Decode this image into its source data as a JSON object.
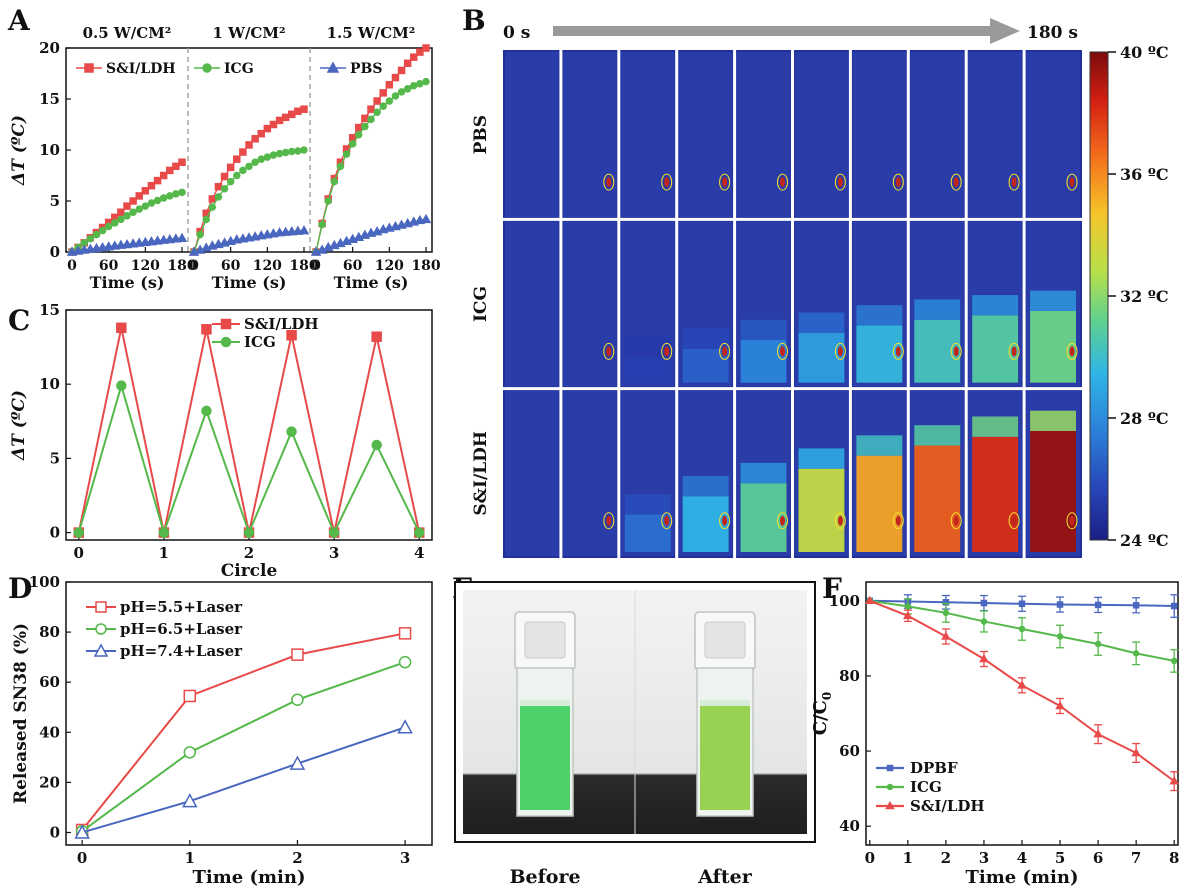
{
  "colors": {
    "red": "#e84a4a",
    "green": "#55b84a",
    "blue": "#4a67c0",
    "arrow": "#9a9a9a",
    "cuvette_liquid_before": "#3fcf5e",
    "cuvette_liquid_after": "#8fcf45",
    "photo_bg": "#eceeed",
    "bench": "#2b2b2b"
  },
  "panel_labels": [
    "A",
    "B",
    "C",
    "D",
    "E",
    "F"
  ],
  "chart_data": [
    {
      "id": "A",
      "type": "line",
      "subpanels": [
        {
          "title": "0.5 W/CM²",
          "xlabel": "Time (s)",
          "xticks": [
            "0",
            "60",
            "120",
            "180"
          ],
          "xlim": [
            0,
            180
          ],
          "series": [
            {
              "name": "S&I/LDH",
              "x": [
                0,
                10,
                20,
                30,
                40,
                50,
                60,
                70,
                80,
                90,
                100,
                110,
                120,
                130,
                140,
                150,
                160,
                170,
                180
              ],
              "y": [
                0,
                0.45,
                0.9,
                1.4,
                1.9,
                2.4,
                2.9,
                3.4,
                3.9,
                4.5,
                5.0,
                5.5,
                6.0,
                6.5,
                7.0,
                7.5,
                8.0,
                8.4,
                8.8
              ]
            },
            {
              "name": "ICG",
              "x": [
                0,
                10,
                20,
                30,
                40,
                50,
                60,
                70,
                80,
                90,
                100,
                110,
                120,
                130,
                140,
                150,
                160,
                170,
                180
              ],
              "y": [
                0,
                0.45,
                0.9,
                1.3,
                1.7,
                2.1,
                2.5,
                2.85,
                3.2,
                3.55,
                3.9,
                4.2,
                4.5,
                4.8,
                5.05,
                5.3,
                5.5,
                5.7,
                5.85
              ]
            },
            {
              "name": "PBS",
              "x": [
                0,
                10,
                20,
                30,
                40,
                50,
                60,
                70,
                80,
                90,
                100,
                110,
                120,
                130,
                140,
                150,
                160,
                170,
                180
              ],
              "y": [
                0,
                0.1,
                0.2,
                0.28,
                0.36,
                0.44,
                0.52,
                0.6,
                0.67,
                0.74,
                0.81,
                0.88,
                0.95,
                1.02,
                1.09,
                1.16,
                1.23,
                1.3,
                1.35
              ]
            }
          ]
        },
        {
          "title": "1 W/CM²",
          "xlabel": "Time (s)",
          "xticks": [
            "0",
            "60",
            "120",
            "180"
          ],
          "xlim": [
            0,
            180
          ],
          "series": [
            {
              "name": "S&I/LDH",
              "x": [
                0,
                10,
                20,
                30,
                40,
                50,
                60,
                70,
                80,
                90,
                100,
                110,
                120,
                130,
                140,
                150,
                160,
                170,
                180
              ],
              "y": [
                0,
                2.0,
                3.8,
                5.2,
                6.4,
                7.4,
                8.3,
                9.1,
                9.8,
                10.5,
                11.1,
                11.6,
                12.1,
                12.5,
                12.9,
                13.2,
                13.5,
                13.8,
                14.0
              ]
            },
            {
              "name": "ICG",
              "x": [
                0,
                10,
                20,
                30,
                40,
                50,
                60,
                70,
                80,
                90,
                100,
                110,
                120,
                130,
                140,
                150,
                160,
                170,
                180
              ],
              "y": [
                0,
                1.7,
                3.2,
                4.4,
                5.4,
                6.2,
                6.9,
                7.5,
                8.0,
                8.4,
                8.8,
                9.1,
                9.3,
                9.5,
                9.65,
                9.75,
                9.85,
                9.9,
                10.0
              ]
            },
            {
              "name": "PBS",
              "x": [
                0,
                10,
                20,
                30,
                40,
                50,
                60,
                70,
                80,
                90,
                100,
                110,
                120,
                130,
                140,
                150,
                160,
                170,
                180
              ],
              "y": [
                0,
                0.2,
                0.4,
                0.6,
                0.75,
                0.9,
                1.05,
                1.2,
                1.3,
                1.4,
                1.5,
                1.6,
                1.7,
                1.8,
                1.9,
                1.95,
                2.0,
                2.05,
                2.1
              ]
            }
          ]
        },
        {
          "title": "1.5 W/CM²",
          "xlabel": "Time (s)",
          "xticks": [
            "0",
            "60",
            "120",
            "180"
          ],
          "xlim": [
            0,
            180
          ],
          "series": [
            {
              "name": "S&I/LDH",
              "x": [
                0,
                10,
                20,
                30,
                40,
                50,
                60,
                70,
                80,
                90,
                100,
                110,
                120,
                130,
                140,
                150,
                160,
                170,
                180
              ],
              "y": [
                0,
                2.8,
                5.2,
                7.2,
                8.8,
                10.1,
                11.2,
                12.2,
                13.1,
                14.0,
                14.8,
                15.6,
                16.4,
                17.1,
                17.8,
                18.5,
                19.1,
                19.6,
                20.0
              ]
            },
            {
              "name": "ICG",
              "x": [
                0,
                10,
                20,
                30,
                40,
                50,
                60,
                70,
                80,
                90,
                100,
                110,
                120,
                130,
                140,
                150,
                160,
                170,
                180
              ],
              "y": [
                0,
                2.7,
                5.0,
                6.9,
                8.4,
                9.6,
                10.6,
                11.5,
                12.3,
                13.0,
                13.7,
                14.3,
                14.8,
                15.3,
                15.7,
                16.0,
                16.3,
                16.5,
                16.7
              ]
            },
            {
              "name": "PBS",
              "x": [
                0,
                10,
                20,
                30,
                40,
                50,
                60,
                70,
                80,
                90,
                100,
                110,
                120,
                130,
                140,
                150,
                160,
                170,
                180
              ],
              "y": [
                0,
                0.2,
                0.45,
                0.65,
                0.85,
                1.05,
                1.25,
                1.45,
                1.65,
                1.85,
                2.0,
                2.2,
                2.35,
                2.5,
                2.65,
                2.8,
                2.95,
                3.1,
                3.2
              ]
            }
          ]
        }
      ],
      "ylabel": "ΔT (ºC)",
      "ylim": [
        0,
        20
      ],
      "yticks": [
        "0",
        "5",
        "10",
        "15",
        "20"
      ],
      "legend": [
        "S&I/LDH",
        "ICG",
        "PBS"
      ]
    },
    {
      "id": "B",
      "type": "heatmap",
      "time_start": "0 s",
      "time_end": "180 s",
      "rows": [
        "PBS",
        "ICG",
        "S&I/LDH"
      ],
      "frames": 10,
      "colorbar_ticks": [
        "40 ºC",
        "36 ºC",
        "32 ºC",
        "28 ºC",
        "24 ºC"
      ],
      "colorbar_range": [
        24,
        40
      ],
      "row_max_temp": [
        [
          25,
          25,
          25,
          25,
          25,
          25,
          25,
          25,
          25,
          25
        ],
        [
          25,
          25.2,
          25.8,
          27,
          28.2,
          29.2,
          30.2,
          31,
          31.6,
          32.2
        ],
        [
          25,
          25.3,
          27.5,
          30,
          31.8,
          33.8,
          35.6,
          37,
          38.2,
          39.5
        ]
      ]
    },
    {
      "id": "C",
      "type": "line",
      "xlabel": "Circle",
      "ylabel": "ΔT (ºC)",
      "xlim": [
        -0.15,
        4.15
      ],
      "ylim": [
        -0.5,
        15
      ],
      "xticks": [
        "0",
        "1",
        "2",
        "3",
        "4"
      ],
      "yticks": [
        "0",
        "5",
        "10",
        "15"
      ],
      "series": [
        {
          "name": "S&I/LDH",
          "x": [
            0,
            0.5,
            1,
            1.5,
            2,
            2.5,
            3,
            3.5,
            4
          ],
          "y": [
            0,
            13.8,
            0,
            13.7,
            0,
            13.3,
            0,
            13.2,
            0
          ]
        },
        {
          "name": "ICG",
          "x": [
            0,
            0.5,
            1,
            1.5,
            2,
            2.5,
            3,
            3.5,
            4
          ],
          "y": [
            0,
            9.9,
            0,
            8.2,
            0,
            6.8,
            0,
            5.9,
            0
          ]
        }
      ],
      "legend": [
        "S&I/LDH",
        "ICG"
      ]
    },
    {
      "id": "D",
      "type": "line",
      "xlabel": "Time (min)",
      "ylabel": "Released SN38 (%)",
      "xlim": [
        -0.15,
        3.25
      ],
      "ylim": [
        -5,
        100
      ],
      "xticks": [
        "0",
        "1",
        "2",
        "3"
      ],
      "yticks": [
        "0",
        "20",
        "40",
        "60",
        "80",
        "100"
      ],
      "series": [
        {
          "name": "pH=5.5+Laser",
          "x": [
            0,
            1,
            2,
            3
          ],
          "y": [
            1,
            54.5,
            71,
            79.5
          ]
        },
        {
          "name": "pH=6.5+Laser",
          "x": [
            0,
            1,
            2,
            3
          ],
          "y": [
            0.5,
            32,
            53,
            68
          ]
        },
        {
          "name": "pH=7.4+Laser",
          "x": [
            0,
            1,
            2,
            3
          ],
          "y": [
            0,
            12.5,
            27.5,
            42
          ]
        }
      ],
      "legend": [
        "pH=5.5+Laser",
        "pH=6.5+Laser",
        "pH=7.4+Laser"
      ]
    },
    {
      "id": "E",
      "type": "photo",
      "captions": [
        "Before",
        "After"
      ]
    },
    {
      "id": "F",
      "type": "line",
      "xlabel": "Time (min)",
      "ylabel": "C/C0",
      "ylabel_main": "C/C",
      "ylabel_sub": "0",
      "xlim": [
        -0.1,
        8.1
      ],
      "ylim": [
        35,
        105
      ],
      "xticks": [
        "0",
        "1",
        "2",
        "3",
        "4",
        "5",
        "6",
        "7",
        "8"
      ],
      "yticks": [
        "40",
        "60",
        "80",
        "100"
      ],
      "series": [
        {
          "name": "DPBF",
          "x": [
            0,
            1,
            2,
            3,
            4,
            5,
            6,
            7,
            8
          ],
          "y": [
            100,
            99.8,
            99.6,
            99.4,
            99.2,
            99,
            98.9,
            98.8,
            98.6
          ],
          "err": [
            0,
            1.8,
            1.8,
            2,
            2,
            2,
            2,
            2,
            3
          ]
        },
        {
          "name": "ICG",
          "x": [
            0,
            1,
            2,
            3,
            4,
            5,
            6,
            7,
            8
          ],
          "y": [
            100,
            98.5,
            96.8,
            94.5,
            92.5,
            90.5,
            88.5,
            86,
            84
          ],
          "err": [
            0,
            2,
            2.5,
            2.8,
            3,
            3,
            3,
            3,
            3
          ]
        },
        {
          "name": "S&I/LDH",
          "x": [
            0,
            1,
            2,
            3,
            4,
            5,
            6,
            7,
            8
          ],
          "y": [
            100,
            96,
            90.5,
            84.5,
            77.5,
            72,
            64.5,
            59.5,
            52
          ],
          "err": [
            0,
            1.5,
            2,
            2,
            2,
            2,
            2.5,
            2.5,
            2.5
          ]
        }
      ],
      "legend": [
        "DPBF",
        "ICG",
        "S&I/LDH"
      ]
    }
  ]
}
